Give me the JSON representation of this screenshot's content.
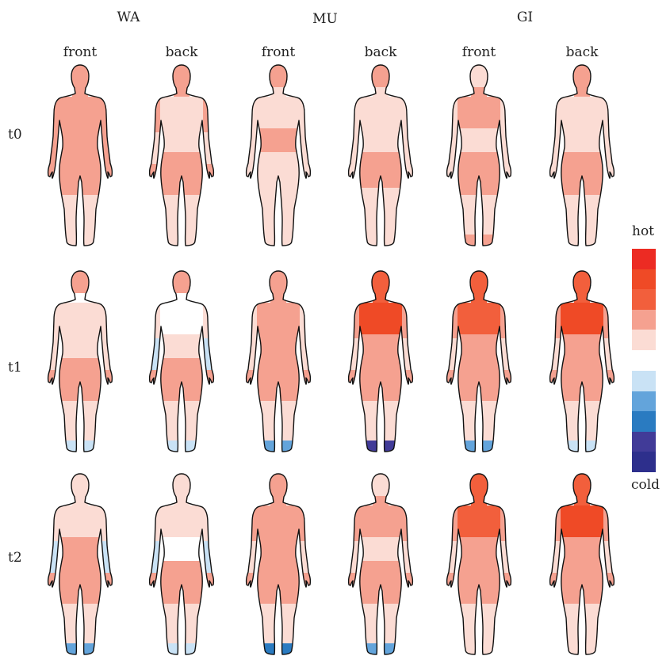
{
  "column_groups": [
    {
      "label": "WA",
      "views": [
        "front",
        "back"
      ]
    },
    {
      "label": "MU",
      "views": [
        "front",
        "back"
      ]
    },
    {
      "label": "GI",
      "views": [
        "front",
        "back"
      ]
    }
  ],
  "rows": [
    "t0",
    "t1",
    "t2"
  ],
  "legend": {
    "hot_label": "hot",
    "cold_label": "cold",
    "hot_colors": [
      "#ec2b23",
      "#ef4a26",
      "#f25f3c",
      "#f5a190",
      "#fbdcd4"
    ],
    "cold_colors": [
      "#c9e2f5",
      "#63a4db",
      "#2a7bc1",
      "#413b98",
      "#2d2f8c"
    ]
  },
  "palette": {
    "0": "#ffffff",
    "1": "#fbdcd4",
    "2": "#f5a190",
    "3": "#f25f3c",
    "4": "#ef4a26",
    "c1": "#c9e2f5",
    "c2": "#63a4db",
    "c3": "#2a7bc1",
    "c4": "#413b98"
  },
  "figures": [
    [
      {
        "head": "2",
        "neck": "2",
        "chest": "2",
        "abdomen": "2",
        "pelvis": "2",
        "upperArm": "2",
        "forearm": "2",
        "hand": "2",
        "thigh": "2",
        "shin": "1",
        "foot": "1"
      },
      {
        "head": "2",
        "neck": "2",
        "chest": "1",
        "abdomen": "1",
        "pelvis": "2",
        "upperArm": "2",
        "forearm": "1",
        "hand": "2",
        "thigh": "2",
        "shin": "1",
        "foot": "1"
      },
      {
        "head": "2",
        "neck": "1",
        "chest": "1",
        "abdomen": "2",
        "pelvis": "1",
        "upperArm": "1",
        "forearm": "1",
        "hand": "1",
        "thigh": "1",
        "shin": "1",
        "foot": "1"
      },
      {
        "head": "2",
        "neck": "1",
        "chest": "1",
        "abdomen": "1",
        "pelvis": "2",
        "upperArm": "1",
        "forearm": "1",
        "hand": "1",
        "thigh": "1",
        "shin": "1",
        "foot": "1"
      },
      {
        "head": "1",
        "neck": "2",
        "chest": "2",
        "abdomen": "1",
        "pelvis": "2",
        "upperArm": "1",
        "forearm": "1",
        "hand": "1",
        "thigh": "2",
        "shin": "1",
        "foot": "2"
      },
      {
        "head": "2",
        "neck": "2",
        "chest": "1",
        "abdomen": "1",
        "pelvis": "2",
        "upperArm": "1",
        "forearm": "1",
        "hand": "1",
        "thigh": "2",
        "shin": "1",
        "foot": "1"
      }
    ],
    [
      {
        "head": "2",
        "neck": "0",
        "chest": "1",
        "abdomen": "1",
        "pelvis": "2",
        "upperArm": "1",
        "forearm": "1",
        "hand": "2",
        "thigh": "2",
        "shin": "1",
        "foot": "c1"
      },
      {
        "head": "2",
        "neck": "0",
        "chest": "0",
        "abdomen": "1",
        "pelvis": "2",
        "upperArm": "1",
        "forearm": "c1",
        "hand": "2",
        "thigh": "2",
        "shin": "1",
        "foot": "c1"
      },
      {
        "head": "2",
        "neck": "2",
        "chest": "2",
        "abdomen": "2",
        "pelvis": "2",
        "upperArm": "1",
        "forearm": "1",
        "hand": "2",
        "thigh": "2",
        "shin": "1",
        "foot": "c2"
      },
      {
        "head": "3",
        "neck": "3",
        "chest": "4",
        "abdomen": "2",
        "pelvis": "2",
        "upperArm": "2",
        "forearm": "1",
        "hand": "2",
        "thigh": "2",
        "shin": "1",
        "foot": "c4"
      },
      {
        "head": "3",
        "neck": "3",
        "chest": "3",
        "abdomen": "2",
        "pelvis": "2",
        "upperArm": "2",
        "forearm": "1",
        "hand": "2",
        "thigh": "2",
        "shin": "1",
        "foot": "c2"
      },
      {
        "head": "3",
        "neck": "3",
        "chest": "4",
        "abdomen": "2",
        "pelvis": "2",
        "upperArm": "2",
        "forearm": "1",
        "hand": "2",
        "thigh": "2",
        "shin": "1",
        "foot": "c1"
      }
    ],
    [
      {
        "head": "1",
        "neck": "1",
        "chest": "1",
        "abdomen": "2",
        "pelvis": "2",
        "upperArm": "1",
        "forearm": "c1",
        "hand": "2",
        "thigh": "2",
        "shin": "1",
        "foot": "c2"
      },
      {
        "head": "1",
        "neck": "1",
        "chest": "1",
        "abdomen": "0",
        "pelvis": "2",
        "upperArm": "1",
        "forearm": "c1",
        "hand": "2",
        "thigh": "2",
        "shin": "1",
        "foot": "c1"
      },
      {
        "head": "2",
        "neck": "2",
        "chest": "2",
        "abdomen": "2",
        "pelvis": "2",
        "upperArm": "2",
        "forearm": "1",
        "hand": "2",
        "thigh": "2",
        "shin": "1",
        "foot": "c3"
      },
      {
        "head": "1",
        "neck": "2",
        "chest": "2",
        "abdomen": "1",
        "pelvis": "2",
        "upperArm": "2",
        "forearm": "1",
        "hand": "2",
        "thigh": "2",
        "shin": "1",
        "foot": "c2"
      },
      {
        "head": "3",
        "neck": "3",
        "chest": "3",
        "abdomen": "2",
        "pelvis": "2",
        "upperArm": "2",
        "forearm": "1",
        "hand": "2",
        "thigh": "2",
        "shin": "1",
        "foot": "1"
      },
      {
        "head": "3",
        "neck": "3",
        "chest": "4",
        "abdomen": "2",
        "pelvis": "2",
        "upperArm": "2",
        "forearm": "1",
        "hand": "2",
        "thigh": "2",
        "shin": "1",
        "foot": "1"
      }
    ]
  ]
}
